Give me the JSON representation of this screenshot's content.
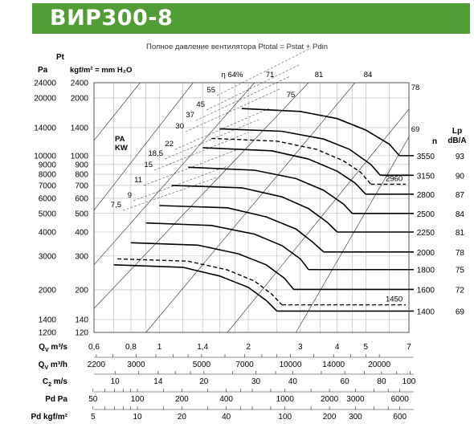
{
  "header": {
    "title": "ВИР300-8",
    "subtitle": "Полное давление вентилятора Ptotal = Pstat + Pdin"
  },
  "chart_data": {
    "type": "line",
    "title": "ВИР300-8",
    "subtitle": "Полное давление вентилятора Ptotal = Pstat + Pdin",
    "x_scale": "log",
    "y_scale": "log",
    "xlim": [
      0.6,
      7
    ],
    "ylim": [
      1200,
      24000
    ],
    "pt_label": "Pt",
    "y_pa_label": "Pa",
    "y_pa_ticks": [
      24000,
      20000,
      14000,
      10000,
      9000,
      8000,
      7000,
      6000,
      5000,
      4000,
      3000,
      2000,
      1400,
      1200
    ],
    "y_kgf_label": "kgf/m² = mm H₂O",
    "y_kgf_ticks": [
      2400,
      2000,
      1400,
      1000,
      900,
      800,
      700,
      600,
      500,
      400,
      300,
      200,
      140,
      120
    ],
    "pa_kw_label": [
      "PA",
      "KW"
    ],
    "power_kw_labels": [
      "55",
      "45",
      "37",
      "30",
      "22",
      "18,5",
      "15",
      "11",
      "9",
      "7,5"
    ],
    "efficiency_label_prefix": "η",
    "efficiency_lines": [
      "64%",
      "71",
      "75",
      "81",
      "84",
      "78",
      "69"
    ],
    "n_label": "n",
    "lp_label": [
      "Lp",
      "dB/A"
    ],
    "speeds": [
      {
        "rpm": "3550",
        "lp": "93"
      },
      {
        "rpm": "3150",
        "lp": "90"
      },
      {
        "rpm": "2800",
        "lp": "87"
      },
      {
        "rpm": "2500",
        "lp": "84"
      },
      {
        "rpm": "2250",
        "lp": "81"
      },
      {
        "rpm": "2000",
        "lp": "78"
      },
      {
        "rpm": "1800",
        "lp": "75"
      },
      {
        "rpm": "1600",
        "lp": "72"
      },
      {
        "rpm": "1400",
        "lp": "69"
      }
    ],
    "dashed_curve_labels": [
      "2960",
      "1450"
    ],
    "series": [
      {
        "rpm": 3550,
        "points": [
          [
            1.9,
            17600
          ],
          [
            3.0,
            17000
          ],
          [
            4.0,
            15600
          ],
          [
            5.0,
            13600
          ],
          [
            6.0,
            11500
          ],
          [
            6.5,
            10000
          ]
        ]
      },
      {
        "rpm": 3150,
        "points": [
          [
            1.6,
            13800
          ],
          [
            2.6,
            13400
          ],
          [
            3.6,
            12200
          ],
          [
            4.4,
            10800
          ],
          [
            5.2,
            9000
          ],
          [
            5.6,
            7900
          ]
        ]
      },
      {
        "rpm": 2800,
        "points": [
          [
            1.4,
            11000
          ],
          [
            2.4,
            10600
          ],
          [
            3.2,
            9600
          ],
          [
            4.0,
            8300
          ],
          [
            4.6,
            7200
          ],
          [
            5.0,
            6300
          ]
        ]
      },
      {
        "rpm": 2500,
        "points": [
          [
            1.25,
            8700
          ],
          [
            2.1,
            8400
          ],
          [
            2.9,
            7600
          ],
          [
            3.6,
            6600
          ],
          [
            4.2,
            5600
          ],
          [
            4.5,
            5000
          ]
        ]
      },
      {
        "rpm": 2250,
        "points": [
          [
            1.1,
            7000
          ],
          [
            1.9,
            6800
          ],
          [
            2.6,
            6100
          ],
          [
            3.2,
            5300
          ],
          [
            3.7,
            4500
          ],
          [
            4.0,
            4000
          ]
        ]
      },
      {
        "rpm": 2000,
        "points": [
          [
            1.0,
            5500
          ],
          [
            1.7,
            5350
          ],
          [
            2.3,
            4800
          ],
          [
            2.9,
            4150
          ],
          [
            3.3,
            3550
          ],
          [
            3.6,
            3150
          ]
        ]
      },
      {
        "rpm": 1800,
        "points": [
          [
            0.9,
            4460
          ],
          [
            1.5,
            4330
          ],
          [
            2.1,
            3900
          ],
          [
            2.6,
            3400
          ],
          [
            3.0,
            2900
          ],
          [
            3.2,
            2550
          ]
        ]
      },
      {
        "rpm": 1600,
        "points": [
          [
            0.8,
            3520
          ],
          [
            1.35,
            3420
          ],
          [
            1.85,
            3080
          ],
          [
            2.3,
            2700
          ],
          [
            2.65,
            2300
          ],
          [
            2.85,
            2010
          ]
        ]
      },
      {
        "rpm": 1400,
        "points": [
          [
            0.7,
            2700
          ],
          [
            1.2,
            2620
          ],
          [
            1.6,
            2360
          ],
          [
            2.0,
            2060
          ],
          [
            2.3,
            1760
          ],
          [
            2.5,
            1550
          ]
        ]
      }
    ],
    "dashed_series": [
      {
        "label": "2960",
        "points": [
          [
            1.5,
            12300
          ],
          [
            2.5,
            11900
          ],
          [
            3.4,
            10800
          ],
          [
            4.2,
            9400
          ],
          [
            4.8,
            8200
          ],
          [
            5.2,
            7100
          ]
        ]
      },
      {
        "label": "1450",
        "points": [
          [
            0.72,
            2900
          ],
          [
            1.25,
            2820
          ],
          [
            1.7,
            2540
          ],
          [
            2.1,
            2220
          ],
          [
            2.4,
            1900
          ],
          [
            2.6,
            1670
          ]
        ]
      }
    ],
    "x_axes": [
      {
        "label": "QV m³/s",
        "ticks": [
          "0,6",
          "0,8",
          "1",
          "1,4",
          "2",
          "3",
          "4",
          "5",
          "7"
        ]
      },
      {
        "label": "QV m³/h",
        "ticks": [
          "2200",
          "3000",
          "5000",
          "7000",
          "10000",
          "14000",
          "20000"
        ]
      },
      {
        "label": "C2 m/s",
        "ticks": [
          "10",
          "14",
          "20",
          "30",
          "40",
          "60",
          "80",
          "100"
        ]
      },
      {
        "label": "Pd Pa",
        "ticks": [
          "50",
          "100",
          "200",
          "400",
          "1000",
          "2000",
          "3000",
          "6000"
        ]
      },
      {
        "label": "Pd kgf/m²",
        "ticks": [
          "5",
          "10",
          "20",
          "40",
          "100",
          "200",
          "300",
          "600"
        ]
      }
    ]
  }
}
